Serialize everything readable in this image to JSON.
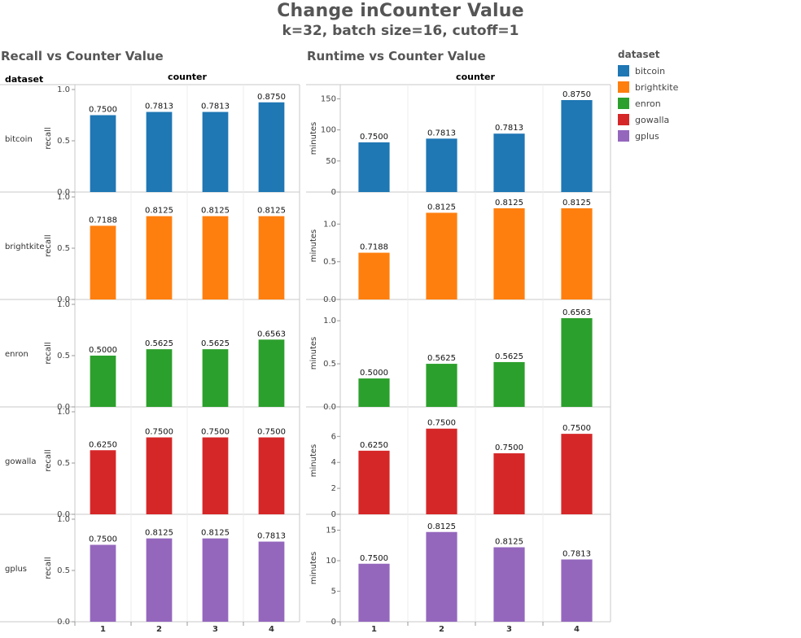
{
  "title": "Change inCounter Value",
  "subtitle": "k=32, batch size=16, cutoff=1",
  "legend": {
    "title": "dataset",
    "items": [
      {
        "label": "bitcoin",
        "color": "#1f77b4"
      },
      {
        "label": "brightkite",
        "color": "#ff7f0e"
      },
      {
        "label": "enron",
        "color": "#2ca02c"
      },
      {
        "label": "gowalla",
        "color": "#d62728"
      },
      {
        "label": "gplus",
        "color": "#9467bd"
      }
    ]
  },
  "chart_data": [
    {
      "type": "bar",
      "title": "Recall vs Counter Value",
      "column_header": "counter",
      "row_header": "dataset",
      "ylabel": "recall",
      "categories": [
        "1",
        "2",
        "3",
        "4"
      ],
      "rows": [
        {
          "dataset": "bitcoin",
          "color": "#1f77b4",
          "values": [
            0.75,
            0.7813,
            0.7813,
            0.875
          ],
          "labels": [
            "0.7500",
            "0.7813",
            "0.7813",
            "0.8750"
          ],
          "ylim": [
            0,
            1.0
          ],
          "ticks": [
            {
              "v": 0,
              "t": "0.0"
            },
            {
              "v": 0.5,
              "t": "0.5"
            },
            {
              "v": 1.0,
              "t": "1.0"
            }
          ]
        },
        {
          "dataset": "brightkite",
          "color": "#ff7f0e",
          "values": [
            0.7188,
            0.8125,
            0.8125,
            0.8125
          ],
          "labels": [
            "0.7188",
            "0.8125",
            "0.8125",
            "0.8125"
          ],
          "ylim": [
            0,
            1.0
          ],
          "ticks": [
            {
              "v": 0,
              "t": "0.0"
            },
            {
              "v": 0.5,
              "t": "0.5"
            },
            {
              "v": 1.0,
              "t": "1.0"
            }
          ]
        },
        {
          "dataset": "enron",
          "color": "#2ca02c",
          "values": [
            0.5,
            0.5625,
            0.5625,
            0.6563
          ],
          "labels": [
            "0.5000",
            "0.5625",
            "0.5625",
            "0.6563"
          ],
          "ylim": [
            0,
            1.0
          ],
          "ticks": [
            {
              "v": 0,
              "t": "0.0"
            },
            {
              "v": 0.5,
              "t": "0.5"
            },
            {
              "v": 1.0,
              "t": "1.0"
            }
          ]
        },
        {
          "dataset": "gowalla",
          "color": "#d62728",
          "values": [
            0.625,
            0.75,
            0.75,
            0.75
          ],
          "labels": [
            "0.6250",
            "0.7500",
            "0.7500",
            "0.7500"
          ],
          "ylim": [
            0,
            1.0
          ],
          "ticks": [
            {
              "v": 0,
              "t": "0.0"
            },
            {
              "v": 0.5,
              "t": "0.5"
            },
            {
              "v": 1.0,
              "t": "1.0"
            }
          ]
        },
        {
          "dataset": "gplus",
          "color": "#9467bd",
          "values": [
            0.75,
            0.8125,
            0.8125,
            0.7813
          ],
          "labels": [
            "0.7500",
            "0.8125",
            "0.8125",
            "0.7813"
          ],
          "ylim": [
            0,
            1.0
          ],
          "ticks": [
            {
              "v": 0,
              "t": "0.0"
            },
            {
              "v": 0.5,
              "t": "0.5"
            },
            {
              "v": 1.0,
              "t": "1.0"
            }
          ]
        }
      ]
    },
    {
      "type": "bar",
      "title": "Runtime vs Counter Value",
      "column_header": "counter",
      "ylabel": "minutes",
      "categories": [
        "1",
        "2",
        "3",
        "4"
      ],
      "rows": [
        {
          "dataset": "bitcoin",
          "color": "#1f77b4",
          "values": [
            80,
            86,
            94,
            148
          ],
          "labels": [
            "0.7500",
            "0.7813",
            "0.7813",
            "0.8750"
          ],
          "ylim": [
            0,
            165
          ],
          "ticks": [
            {
              "v": 0,
              "t": "0"
            },
            {
              "v": 50,
              "t": "50"
            },
            {
              "v": 100,
              "t": "100"
            },
            {
              "v": 150,
              "t": "150"
            }
          ]
        },
        {
          "dataset": "brightkite",
          "color": "#ff7f0e",
          "values": [
            0.62,
            1.15,
            1.21,
            1.21
          ],
          "labels": [
            "0.7188",
            "0.8125",
            "0.8125",
            "0.8125"
          ],
          "ylim": [
            0,
            1.36
          ],
          "ticks": [
            {
              "v": 0,
              "t": "0.0"
            },
            {
              "v": 0.5,
              "t": "0.5"
            },
            {
              "v": 1.0,
              "t": "1.0"
            }
          ]
        },
        {
          "dataset": "enron",
          "color": "#2ca02c",
          "values": [
            0.33,
            0.5,
            0.52,
            1.03
          ],
          "labels": [
            "0.5000",
            "0.5625",
            "0.5625",
            "0.6563"
          ],
          "ylim": [
            0,
            1.19
          ],
          "ticks": [
            {
              "v": 0,
              "t": "0.0"
            },
            {
              "v": 0.5,
              "t": "0.5"
            },
            {
              "v": 1.0,
              "t": "1.0"
            }
          ]
        },
        {
          "dataset": "gowalla",
          "color": "#d62728",
          "values": [
            4.9,
            6.6,
            4.7,
            6.2
          ],
          "labels": [
            "0.6250",
            "0.7500",
            "0.7500",
            "0.7500"
          ],
          "ylim": [
            0,
            7.9
          ],
          "ticks": [
            {
              "v": 0,
              "t": "0"
            },
            {
              "v": 2,
              "t": "2"
            },
            {
              "v": 4,
              "t": "4"
            },
            {
              "v": 6,
              "t": "6"
            }
          ]
        },
        {
          "dataset": "gplus",
          "color": "#9467bd",
          "values": [
            9.5,
            14.7,
            12.2,
            10.2
          ],
          "labels": [
            "0.7500",
            "0.8125",
            "0.8125",
            "0.7813"
          ],
          "ylim": [
            0,
            16.8
          ],
          "ticks": [
            {
              "v": 0,
              "t": "0"
            },
            {
              "v": 5,
              "t": "5"
            },
            {
              "v": 10,
              "t": "10"
            },
            {
              "v": 15,
              "t": "15"
            }
          ]
        }
      ]
    }
  ]
}
